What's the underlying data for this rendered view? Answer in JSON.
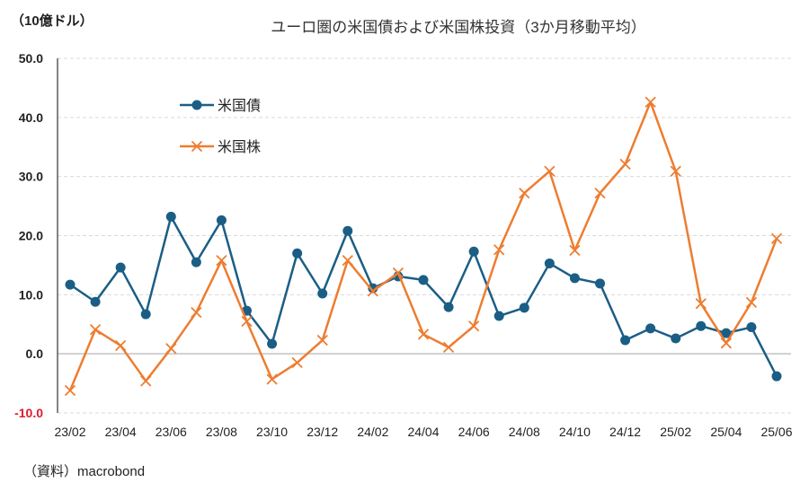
{
  "chart_data": {
    "type": "line",
    "title": "ユーロ圏の米国債および米国株投資（3か月移動平均）",
    "unit_label": "（10億ドル）",
    "source": "（資料）macrobond",
    "xlabel": "",
    "ylabel": "10億ドル",
    "ylim": [
      -10,
      50
    ],
    "yticks": [
      "50.0",
      "40.0",
      "30.0",
      "20.0",
      "10.0",
      "0.0",
      "-10.0"
    ],
    "ytick_values": [
      50,
      40,
      30,
      20,
      10,
      0,
      -10
    ],
    "x": [
      "23/02",
      "23/03",
      "23/04",
      "23/05",
      "23/06",
      "23/07",
      "23/08",
      "23/09",
      "23/10",
      "23/11",
      "23/12",
      "24/01",
      "24/02",
      "24/03",
      "24/04",
      "24/05",
      "24/06",
      "24/07",
      "24/08",
      "24/09",
      "24/10",
      "24/11",
      "24/12",
      "25/01",
      "25/02",
      "25/03",
      "25/04",
      "25/05",
      "25/06"
    ],
    "xtick_labels": [
      "23/02",
      "23/04",
      "23/06",
      "23/08",
      "23/10",
      "23/12",
      "24/02",
      "24/04",
      "24/06",
      "24/08",
      "24/10",
      "24/12",
      "25/02",
      "25/04",
      "25/06"
    ],
    "grid": true,
    "legend_position": "top-left",
    "series": [
      {
        "name": "米国債",
        "color": "#1b5e85",
        "marker": "circle",
        "values": [
          11.7,
          8.8,
          14.6,
          6.7,
          23.2,
          15.5,
          22.6,
          7.3,
          1.7,
          17.0,
          10.2,
          20.8,
          11.1,
          13.1,
          12.5,
          7.9,
          17.3,
          6.4,
          7.8,
          15.3,
          12.8,
          11.9,
          2.3,
          4.3,
          2.6,
          4.7,
          3.5,
          4.5,
          -3.8
        ]
      },
      {
        "name": "米国株",
        "color": "#ed7d31",
        "marker": "x",
        "values": [
          -6.2,
          4.1,
          1.4,
          -4.6,
          0.9,
          7.0,
          15.8,
          5.5,
          -4.3,
          -1.5,
          2.3,
          15.8,
          10.6,
          13.7,
          3.3,
          1.1,
          4.7,
          17.6,
          27.2,
          30.9,
          17.5,
          27.2,
          32.1,
          42.6,
          30.9,
          8.5,
          1.8,
          8.7,
          19.5
        ]
      }
    ]
  }
}
